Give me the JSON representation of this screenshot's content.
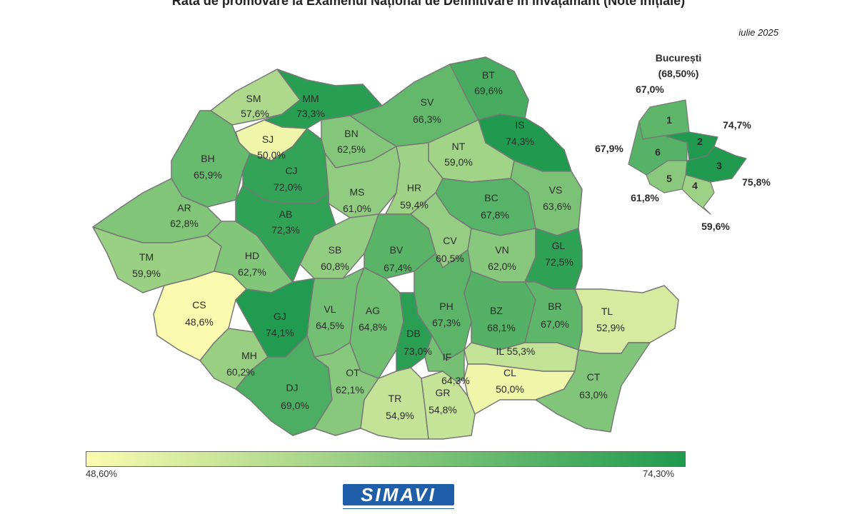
{
  "title": "Rata de promovare la Examenul Național de Definitivare în învățământ (Note inițiale)",
  "date": "iulie 2025",
  "colors": {
    "min": "#fbfbaf",
    "max": "#1f9a4e",
    "border": "#777777",
    "logo_bg": "#1f5ea8"
  },
  "legend": {
    "min_label": "48,60%",
    "max_label": "74,30%",
    "min": 48.6,
    "max": 74.3
  },
  "logo_text": "SIMAVI",
  "counties": [
    {
      "code": "SM",
      "value": 57.6,
      "label": "57,6%"
    },
    {
      "code": "MM",
      "value": 73.3,
      "label": "73,3%"
    },
    {
      "code": "BT",
      "value": 69.6,
      "label": "69,6%"
    },
    {
      "code": "SV",
      "value": 66.3,
      "label": "66,3%"
    },
    {
      "code": "SJ",
      "value": 50.0,
      "label": "50,0%"
    },
    {
      "code": "BN",
      "value": 62.5,
      "label": "62,5%"
    },
    {
      "code": "IS",
      "value": 74.3,
      "label": "74,3%"
    },
    {
      "code": "BH",
      "value": 65.9,
      "label": "65,9%"
    },
    {
      "code": "CJ",
      "value": 72.0,
      "label": "72,0%"
    },
    {
      "code": "NT",
      "value": 59.0,
      "label": "59,0%"
    },
    {
      "code": "MS",
      "value": 61.0,
      "label": "61,0%"
    },
    {
      "code": "HR",
      "value": 59.4,
      "label": "59,4%"
    },
    {
      "code": "BC",
      "value": 67.8,
      "label": "67,8%"
    },
    {
      "code": "VS",
      "value": 63.6,
      "label": "63,6%"
    },
    {
      "code": "AR",
      "value": 62.8,
      "label": "62,8%"
    },
    {
      "code": "AB",
      "value": 72.3,
      "label": "72,3%"
    },
    {
      "code": "TM",
      "value": 59.9,
      "label": "59,9%"
    },
    {
      "code": "HD",
      "value": 62.7,
      "label": "62,7%"
    },
    {
      "code": "SB",
      "value": 60.8,
      "label": "60,8%"
    },
    {
      "code": "BV",
      "value": 67.4,
      "label": "67,4%"
    },
    {
      "code": "CV",
      "value": 60.5,
      "label": "60,5%"
    },
    {
      "code": "VN",
      "value": 62.0,
      "label": "62,0%"
    },
    {
      "code": "GL",
      "value": 72.5,
      "label": "72,5%"
    },
    {
      "code": "CS",
      "value": 48.6,
      "label": "48,6%"
    },
    {
      "code": "GJ",
      "value": 74.1,
      "label": "74,1%"
    },
    {
      "code": "VL",
      "value": 64.5,
      "label": "64,5%"
    },
    {
      "code": "AG",
      "value": 64.8,
      "label": "64,8%"
    },
    {
      "code": "PH",
      "value": 67.3,
      "label": "67,3%"
    },
    {
      "code": "BZ",
      "value": 68.1,
      "label": "68,1%"
    },
    {
      "code": "BR",
      "value": 67.0,
      "label": "67,0%"
    },
    {
      "code": "TL",
      "value": 52.9,
      "label": "52,9%"
    },
    {
      "code": "DB",
      "value": 73.0,
      "label": "73,0%"
    },
    {
      "code": "MH",
      "value": 60.2,
      "label": "60,2%"
    },
    {
      "code": "DJ",
      "value": 69.0,
      "label": "69,0%"
    },
    {
      "code": "OT",
      "value": 62.1,
      "label": "62,1%"
    },
    {
      "code": "TR",
      "value": 54.9,
      "label": "54,9%"
    },
    {
      "code": "GR",
      "value": 54.8,
      "label": "54,8%"
    },
    {
      "code": "IF",
      "value": 64.3,
      "label": "64,3%"
    },
    {
      "code": "IL",
      "value": 55.3,
      "label": "55,3%"
    },
    {
      "code": "CL",
      "value": 50.0,
      "label": "50,0%"
    },
    {
      "code": "CT",
      "value": 63.0,
      "label": "63,0%"
    }
  ],
  "bucharest": {
    "title": "București",
    "total_label": "(68,50%)",
    "sectors": [
      {
        "code": "1",
        "value": 67.0,
        "label": "67,0%"
      },
      {
        "code": "2",
        "value": 74.7,
        "label": "74,7%"
      },
      {
        "code": "3",
        "value": 75.8,
        "label": "75,8%"
      },
      {
        "code": "4",
        "value": 59.6,
        "label": "59,6%"
      },
      {
        "code": "5",
        "value": 61.8,
        "label": "61,8%"
      },
      {
        "code": "6",
        "value": 67.9,
        "label": "67,9%"
      }
    ]
  }
}
